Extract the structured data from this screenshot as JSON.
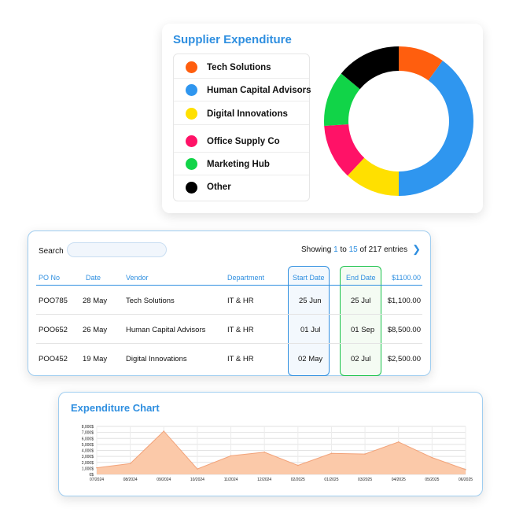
{
  "supplier": {
    "title": "Supplier Expenditure",
    "legend": [
      {
        "label": "Tech Solutions",
        "color": "#ff5e0e"
      },
      {
        "label": "Human Capital Advisors",
        "color": "#2f96ef"
      },
      {
        "label": "Digital Innovations",
        "color": "#ffe000"
      },
      {
        "label": "Office Supply Co",
        "color": "#ff1267"
      },
      {
        "label": "Marketing Hub",
        "color": "#11d448"
      },
      {
        "label": "Other",
        "color": "#000000"
      }
    ],
    "donut": [
      {
        "name": "Tech Solutions",
        "value": 10,
        "color": "#ff5e0e"
      },
      {
        "name": "Human Capital Advisors",
        "value": 40,
        "color": "#2f96ef"
      },
      {
        "name": "Digital Innovations",
        "value": 12,
        "color": "#ffe000"
      },
      {
        "name": "Office Supply Co",
        "value": 12,
        "color": "#ff1267"
      },
      {
        "name": "Marketing Hub",
        "value": 12,
        "color": "#11d448"
      },
      {
        "name": "Other",
        "value": 14,
        "color": "#000000"
      }
    ]
  },
  "table": {
    "search_label": "Search",
    "search_value": "",
    "pager": {
      "prefix": "Showing",
      "from": "1",
      "to_word": "to",
      "to": "15",
      "suffix": "of 217 entries",
      "next_icon": "chevron-right-icon"
    },
    "headers": {
      "po": "PO No",
      "date": "Date",
      "vendor": "Vendor",
      "department": "Department",
      "start": "Start Date",
      "end": "End Date",
      "amount": "$1100.00"
    },
    "rows": [
      {
        "po": "POO785",
        "date": "28 May",
        "vendor": "Tech Solutions",
        "department": "IT & HR",
        "start": "25 Jun",
        "end": "25 Jul",
        "amount": "$1,100.00"
      },
      {
        "po": "POO652",
        "date": "26 May",
        "vendor": "Human Capital Advisors",
        "department": "IT & HR",
        "start": "01 Jul",
        "end": "01 Sep",
        "amount": "$8,500.00"
      },
      {
        "po": "POO452",
        "date": "19 May",
        "vendor": "Digital Innovations",
        "department": "IT & HR",
        "start": "02 May",
        "end": "02 Jul",
        "amount": "$2,500.00"
      }
    ],
    "accent": "#2f8fe0",
    "end_accent": "#19c24a"
  },
  "chart": {
    "title": "Expenditure Chart"
  },
  "chart_data": {
    "type": "area",
    "title": "Expenditure Chart",
    "x": [
      "07/2024",
      "08/2024",
      "09/2024",
      "10/2024",
      "11/2024",
      "12/2024",
      "02/2025",
      "01/2025",
      "03/2025",
      "04/2025",
      "05/2025",
      "06/2025"
    ],
    "y_ticks": [
      "0$",
      "1,000$",
      "2,000$",
      "3,000$",
      "4,000$",
      "5,000$",
      "6,000$",
      "7,000$",
      "8,000$"
    ],
    "values": [
      1100,
      1800,
      7200,
      900,
      3100,
      3700,
      1500,
      3500,
      3400,
      5400,
      2800,
      800
    ],
    "ylim": [
      0,
      8000
    ],
    "grid": true,
    "fill_color": "#fbc9a9",
    "line_color": "#f2a37a"
  }
}
